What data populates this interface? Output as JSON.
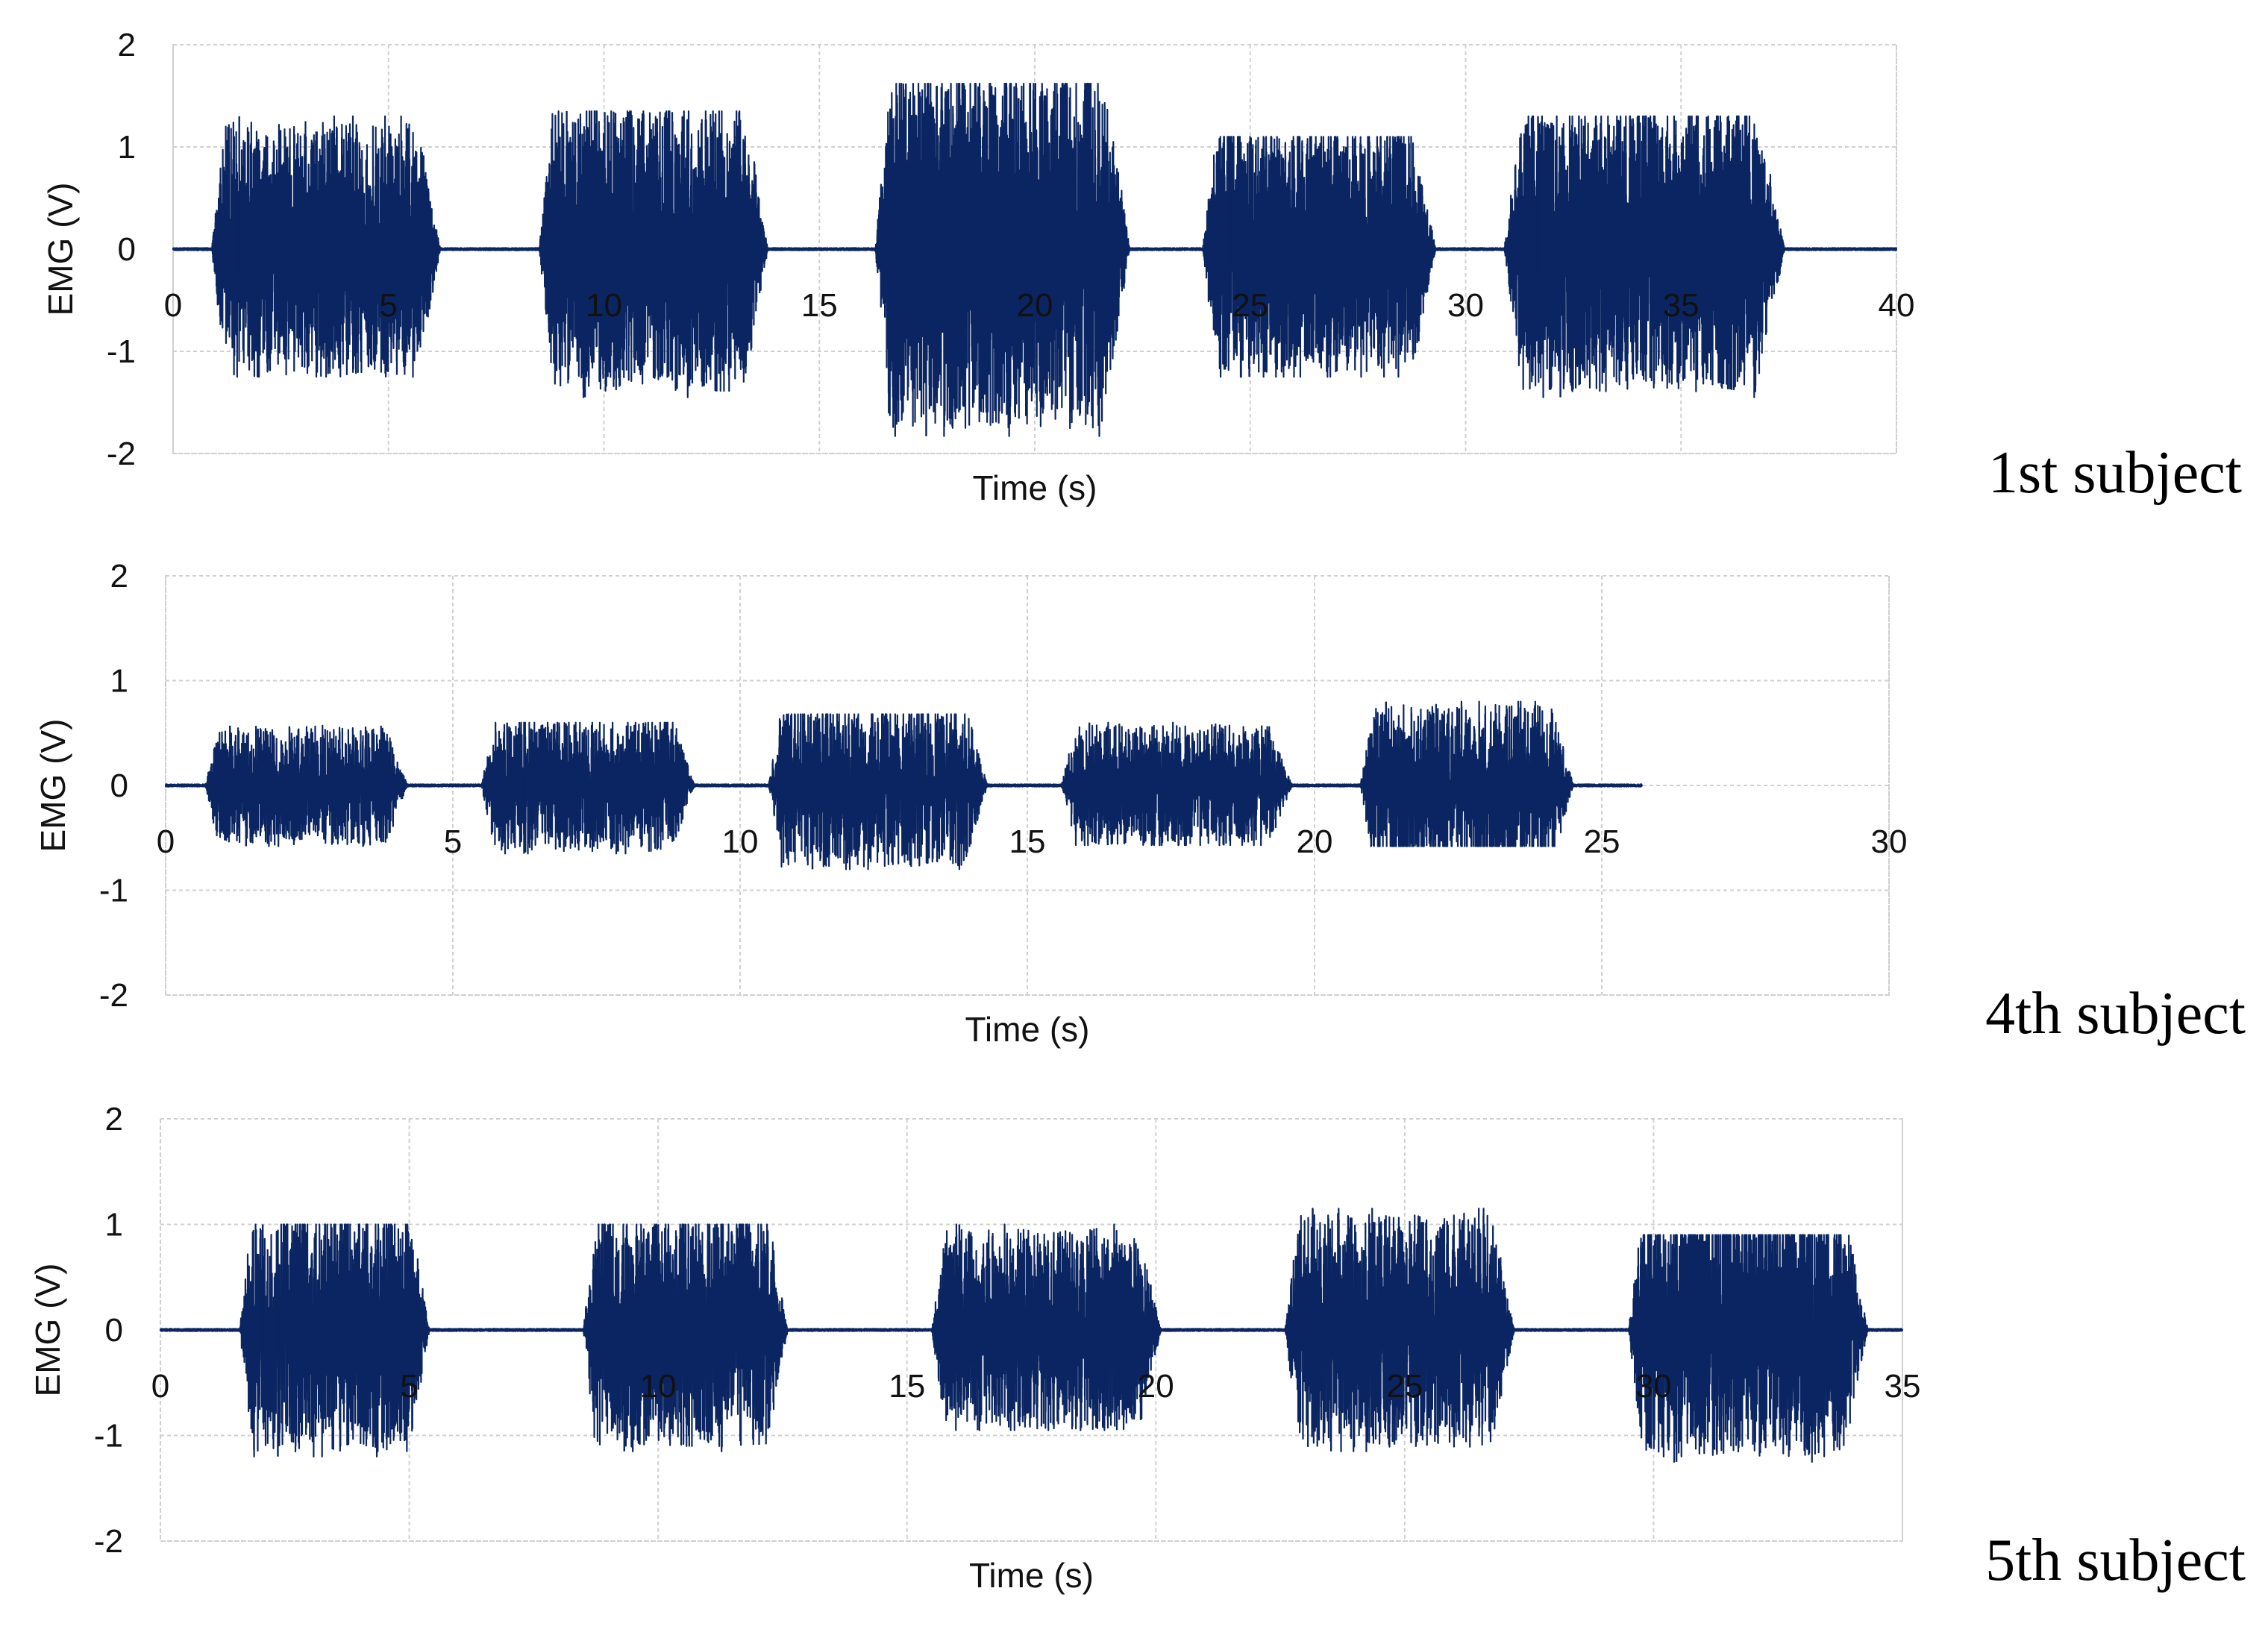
{
  "colors": {
    "signal": "#0a2561",
    "grid": "#d0d0d0",
    "text": "#111111"
  },
  "chart_data": [
    {
      "type": "line",
      "subject_label": "1st subject",
      "xlabel": "Time (s)",
      "ylabel": "EMG (V)",
      "xlim": [
        0,
        40
      ],
      "ylim": [
        -2,
        2
      ],
      "xticks": [
        0,
        5,
        10,
        15,
        20,
        25,
        30,
        35,
        40
      ],
      "xtick_labels": [
        "0",
        "5",
        "10",
        "15",
        "20",
        "25",
        "30",
        "35",
        "40"
      ],
      "yticks": [
        2,
        1,
        0,
        -1,
        -2
      ],
      "ytick_labels": [
        "2",
        "1",
        "0",
        "-1",
        "-2"
      ],
      "grid": true,
      "signal_end": 40,
      "bursts": [
        {
          "start": 0.9,
          "end": 6.2,
          "max": 1.3,
          "min": -1.25
        },
        {
          "start": 8.5,
          "end": 13.8,
          "max": 1.35,
          "min": -1.45
        },
        {
          "start": 16.3,
          "end": 22.2,
          "max": 1.62,
          "min": -1.83
        },
        {
          "start": 23.9,
          "end": 29.3,
          "max": 1.1,
          "min": -1.25
        },
        {
          "start": 30.9,
          "end": 37.4,
          "max": 1.3,
          "min": -1.45
        }
      ]
    },
    {
      "type": "line",
      "subject_label": "4th subject",
      "xlabel": "Time (s)",
      "ylabel": "EMG (V)",
      "xlim": [
        0,
        30
      ],
      "ylim": [
        -2,
        2
      ],
      "xticks": [
        0,
        5,
        10,
        15,
        20,
        25,
        30
      ],
      "xtick_labels": [
        "0",
        "5",
        "10",
        "15",
        "20",
        "25",
        "30"
      ],
      "yticks": [
        2,
        1,
        0,
        -1,
        -2
      ],
      "ytick_labels": [
        "2",
        "1",
        "0",
        "-1",
        "-2"
      ],
      "grid": true,
      "signal_end": 25.7,
      "bursts": [
        {
          "start": 0.7,
          "end": 4.2,
          "max": 0.57,
          "min": -0.58
        },
        {
          "start": 5.5,
          "end": 9.2,
          "max": 0.6,
          "min": -0.65
        },
        {
          "start": 10.5,
          "end": 14.3,
          "max": 0.68,
          "min": -0.8
        },
        {
          "start": 15.6,
          "end": 19.6,
          "max": 0.6,
          "min": -0.57
        },
        {
          "start": 20.8,
          "end": 24.5,
          "max": 0.8,
          "min": -0.58
        }
      ]
    },
    {
      "type": "line",
      "subject_label": "5th subject",
      "xlabel": "Time (s)",
      "ylabel": "EMG (V)",
      "xlim": [
        0,
        35
      ],
      "ylim": [
        -2,
        2
      ],
      "xticks": [
        0,
        5,
        10,
        15,
        20,
        25,
        30,
        35
      ],
      "xtick_labels": [
        "0",
        "5",
        "10",
        "15",
        "20",
        "25",
        "30",
        "35"
      ],
      "yticks": [
        2,
        1,
        0,
        -1,
        -2
      ],
      "ytick_labels": [
        "2",
        "1",
        "0",
        "-1",
        "-2"
      ],
      "grid": true,
      "signal_end": 35,
      "bursts": [
        {
          "start": 1.6,
          "end": 5.4,
          "max": 1.0,
          "min": -1.2
        },
        {
          "start": 8.5,
          "end": 12.6,
          "max": 1.0,
          "min": -1.15
        },
        {
          "start": 15.5,
          "end": 20.1,
          "max": 1.0,
          "min": -0.95
        },
        {
          "start": 22.6,
          "end": 27.2,
          "max": 1.15,
          "min": -1.15
        },
        {
          "start": 29.5,
          "end": 34.3,
          "max": 0.9,
          "min": -1.25
        }
      ]
    }
  ]
}
